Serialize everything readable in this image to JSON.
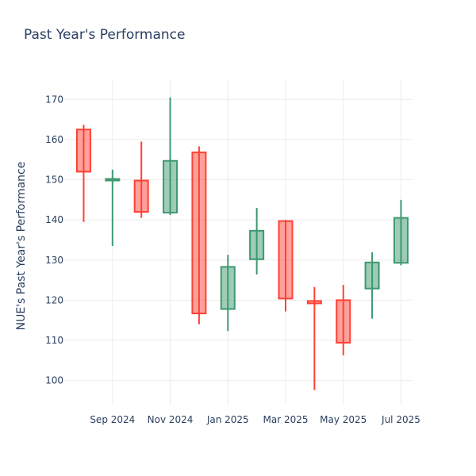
{
  "chart_data": {
    "type": "candlestick",
    "title": "Past Year's Performance",
    "ylabel": "NUE's Past Year's Performance",
    "xlabel": "",
    "ylim": [
      94,
      175
    ],
    "y_ticks": [
      100,
      110,
      120,
      130,
      140,
      150,
      160,
      170
    ],
    "x_ticks": [
      {
        "label": "Sep 2024",
        "month_index": 1
      },
      {
        "label": "Nov 2024",
        "month_index": 3
      },
      {
        "label": "Jan 2025",
        "month_index": 5
      },
      {
        "label": "Mar 2025",
        "month_index": 7
      },
      {
        "label": "May 2025",
        "month_index": 9
      },
      {
        "label": "Jul 2025",
        "month_index": 11
      }
    ],
    "xlim": [
      -0.7,
      11.4
    ],
    "increasing_color": "#3d9970",
    "decreasing_color": "#ff4136",
    "grid": true,
    "candles": [
      {
        "period": "Aug 2024",
        "open": 162.5,
        "high": 163.7,
        "low": 139.5,
        "close": 152.0
      },
      {
        "period": "Sep 2024",
        "open": 149.8,
        "high": 152.5,
        "low": 133.5,
        "close": 150.2
      },
      {
        "period": "Oct 2024",
        "open": 149.8,
        "high": 159.5,
        "low": 140.5,
        "close": 142.0
      },
      {
        "period": "Nov 2024",
        "open": 141.8,
        "high": 170.5,
        "low": 141.2,
        "close": 154.7
      },
      {
        "period": "Dec 2024",
        "open": 156.8,
        "high": 158.3,
        "low": 114.0,
        "close": 116.7
      },
      {
        "period": "Jan 2025",
        "open": 117.8,
        "high": 131.3,
        "low": 112.3,
        "close": 128.3
      },
      {
        "period": "Feb 2025",
        "open": 130.2,
        "high": 143.0,
        "low": 126.4,
        "close": 137.3
      },
      {
        "period": "Mar 2025",
        "open": 139.7,
        "high": 140.0,
        "low": 117.2,
        "close": 120.4
      },
      {
        "period": "Apr 2025",
        "open": 119.8,
        "high": 123.3,
        "low": 97.6,
        "close": 119.2
      },
      {
        "period": "May 2025",
        "open": 120.0,
        "high": 123.8,
        "low": 106.3,
        "close": 109.4
      },
      {
        "period": "Jun 2025",
        "open": 122.9,
        "high": 131.9,
        "low": 115.4,
        "close": 129.4
      },
      {
        "period": "Jul 2025",
        "open": 129.3,
        "high": 145.0,
        "low": 128.7,
        "close": 140.5
      }
    ]
  }
}
